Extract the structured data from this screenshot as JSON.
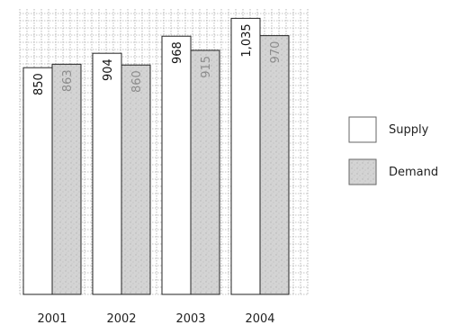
{
  "chart_data": {
    "type": "bar",
    "title": "",
    "xlabel": "",
    "ylabel": "",
    "categories": [
      "2001",
      "2002",
      "2003",
      "2004"
    ],
    "series": [
      {
        "name": "Supply",
        "values": [
          850,
          904,
          968,
          1035
        ],
        "labels": [
          "850",
          "904",
          "968",
          "1,035"
        ]
      },
      {
        "name": "Demand",
        "values": [
          863,
          860,
          915,
          970
        ],
        "labels": [
          "863",
          "860",
          "915",
          "970"
        ]
      }
    ],
    "ylim": [
      0,
      1070
    ],
    "grid": true,
    "legend_position": "right",
    "colors": {
      "supply_fill": "#ffffff",
      "demand_fill": "#d4d4d4",
      "bar_stroke": "#222222",
      "grid": "#8a8a8a"
    }
  }
}
